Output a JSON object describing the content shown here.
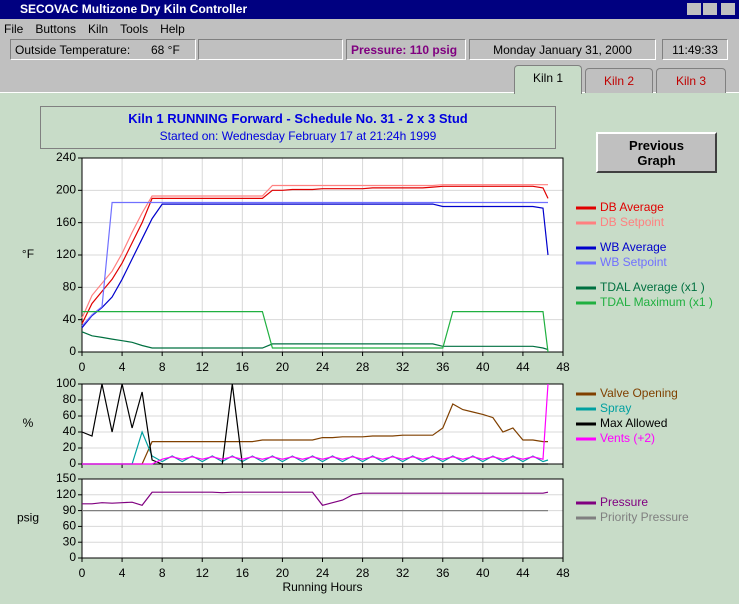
{
  "window": {
    "title": "SECOVAC Multizone Dry Kiln Controller",
    "menu": [
      "File",
      "Buttons",
      "Kiln",
      "Tools",
      "Help"
    ],
    "status": {
      "outside_label": "Outside Temperature:",
      "outside_value": "68 °F",
      "pressure": "Pressure: 110 psig",
      "date": "Monday January 31, 2000",
      "time": "11:49:33"
    },
    "tabs": [
      "Kiln 1",
      "Kiln 2",
      "Kiln 3"
    ],
    "header": {
      "title": "Kiln 1 RUNNING Forward - Schedule No. 31 - 2 x 3 Stud",
      "subtitle": "Started on: Wednesday February 17 at 21:24h 1999"
    },
    "button": "Previous Graph"
  },
  "chart_data": [
    {
      "type": "line",
      "ylabel": "°F",
      "grid": true,
      "show_xtick_labels": true,
      "xlim": [
        0,
        48
      ],
      "xticks": [
        0,
        4,
        8,
        12,
        16,
        20,
        24,
        28,
        32,
        36,
        40,
        44,
        48
      ],
      "ylim": [
        0,
        240
      ],
      "yticks": [
        0,
        40,
        80,
        120,
        160,
        200,
        240
      ],
      "x": [
        0,
        1,
        2,
        3,
        4,
        5,
        6,
        7,
        8,
        9,
        10,
        11,
        12,
        13,
        14,
        15,
        16,
        17,
        18,
        19,
        20,
        21,
        22,
        23,
        24,
        25,
        26,
        27,
        28,
        29,
        30,
        31,
        32,
        33,
        34,
        35,
        36,
        37,
        38,
        39,
        40,
        41,
        42,
        43,
        44,
        45,
        46,
        46.5
      ],
      "series": [
        {
          "name": "DB Average",
          "color": "#e00000",
          "values": [
            35,
            60,
            75,
            90,
            110,
            135,
            160,
            190,
            190,
            190,
            190,
            190,
            190,
            190,
            190,
            190,
            190,
            190,
            190,
            200,
            200,
            201,
            201,
            201,
            202,
            202,
            202,
            202,
            202,
            203,
            203,
            203,
            203,
            203,
            203,
            204,
            205,
            205,
            205,
            205,
            205,
            205,
            205,
            205,
            205,
            205,
            203,
            190
          ]
        },
        {
          "name": "DB Setpoint",
          "color": "#ff8080",
          "values": [
            42,
            70,
            85,
            100,
            122,
            148,
            172,
            193,
            193,
            193,
            193,
            193,
            193,
            193,
            193,
            193,
            193,
            193,
            193,
            206,
            206,
            206,
            206,
            206,
            206,
            206,
            206,
            206,
            206,
            206,
            206,
            206,
            206,
            206,
            206,
            206,
            207,
            207,
            207,
            207,
            207,
            207,
            207,
            207,
            207,
            207,
            207,
            207
          ]
        },
        {
          "name": "WB Average",
          "color": "#0000cc",
          "values": [
            30,
            45,
            55,
            68,
            90,
            115,
            140,
            165,
            183,
            183,
            183,
            183,
            183,
            183,
            183,
            183,
            183,
            183,
            183,
            183,
            183,
            183,
            183,
            183,
            183,
            183,
            183,
            183,
            183,
            183,
            183,
            183,
            183,
            183,
            183,
            183,
            180,
            180,
            180,
            180,
            180,
            180,
            180,
            180,
            180,
            180,
            178,
            120
          ]
        },
        {
          "name": "WB Setpoint",
          "color": "#7070ff",
          "values": [
            32,
            46,
            56,
            185,
            185,
            185,
            185,
            185,
            185,
            185,
            185,
            185,
            185,
            185,
            185,
            185,
            185,
            185,
            185,
            185,
            185,
            185,
            185,
            185,
            185,
            185,
            185,
            185,
            185,
            185,
            185,
            185,
            185,
            185,
            185,
            185,
            185,
            185,
            185,
            185,
            185,
            185,
            185,
            185,
            185,
            185,
            185,
            185
          ]
        },
        {
          "name": "TDAL Average (x1 )",
          "color": "#007040",
          "values": [
            25,
            20,
            18,
            16,
            14,
            12,
            8,
            5,
            5,
            5,
            5,
            5,
            5,
            5,
            5,
            5,
            5,
            5,
            5,
            10,
            10,
            10,
            10,
            10,
            10,
            10,
            10,
            10,
            10,
            10,
            10,
            10,
            10,
            10,
            10,
            10,
            7,
            7,
            7,
            7,
            7,
            7,
            7,
            7,
            7,
            7,
            5,
            3
          ]
        },
        {
          "name": "TDAL Maximum (x1 )",
          "color": "#20b040",
          "values": [
            50,
            50,
            50,
            50,
            50,
            50,
            50,
            50,
            50,
            50,
            50,
            50,
            50,
            50,
            50,
            50,
            50,
            50,
            50,
            5,
            5,
            5,
            5,
            5,
            5,
            5,
            5,
            5,
            5,
            5,
            5,
            5,
            5,
            5,
            5,
            5,
            5,
            50,
            50,
            50,
            50,
            50,
            50,
            50,
            50,
            50,
            50,
            0
          ]
        }
      ]
    },
    {
      "type": "line",
      "ylabel": "%",
      "grid": true,
      "show_xtick_labels": false,
      "xlim": [
        0,
        48
      ],
      "xticks": [
        0,
        4,
        8,
        12,
        16,
        20,
        24,
        28,
        32,
        36,
        40,
        44,
        48
      ],
      "ylim": [
        0,
        100
      ],
      "yticks": [
        0,
        20,
        40,
        60,
        80,
        100
      ],
      "x": [
        0,
        1,
        2,
        3,
        4,
        5,
        6,
        7,
        8,
        9,
        10,
        11,
        12,
        13,
        14,
        15,
        16,
        17,
        18,
        19,
        20,
        21,
        22,
        23,
        24,
        25,
        26,
        27,
        28,
        29,
        30,
        31,
        32,
        33,
        34,
        35,
        36,
        37,
        38,
        39,
        40,
        41,
        42,
        43,
        44,
        45,
        46,
        46.5
      ],
      "series": [
        {
          "name": "Valve Opening",
          "color": "#804000",
          "values": [
            0,
            0,
            0,
            0,
            0,
            0,
            0,
            28,
            28,
            28,
            28,
            28,
            28,
            28,
            28,
            28,
            28,
            28,
            30,
            30,
            30,
            30,
            30,
            30,
            33,
            33,
            34,
            34,
            34,
            35,
            35,
            35,
            36,
            36,
            36,
            36,
            45,
            75,
            68,
            65,
            62,
            58,
            40,
            45,
            30,
            30,
            28,
            28
          ]
        },
        {
          "name": "Spray",
          "color": "#00a0a0",
          "values": [
            0,
            0,
            0,
            0,
            0,
            0,
            40,
            10,
            3,
            10,
            3,
            10,
            3,
            10,
            3,
            10,
            3,
            10,
            3,
            10,
            3,
            10,
            3,
            10,
            3,
            10,
            3,
            10,
            3,
            10,
            3,
            10,
            3,
            10,
            3,
            10,
            3,
            10,
            3,
            10,
            3,
            10,
            3,
            10,
            3,
            10,
            3,
            5
          ]
        },
        {
          "name": "Max Allowed",
          "color": "#000000",
          "values": [
            40,
            35,
            100,
            40,
            100,
            45,
            90,
            5,
            0,
            0,
            0,
            0,
            0,
            0,
            0,
            100,
            0,
            0,
            0,
            0,
            0,
            0,
            0,
            0,
            0,
            0,
            0,
            0,
            0,
            0,
            0,
            0,
            0,
            0,
            0,
            0,
            0,
            0,
            0,
            0,
            0,
            0,
            0,
            0,
            0,
            0,
            0,
            0
          ]
        },
        {
          "name": "Vents (+2)",
          "color": "#ff00ff",
          "values": [
            0,
            0,
            0,
            0,
            0,
            0,
            0,
            0,
            6,
            9,
            6,
            9,
            6,
            9,
            6,
            9,
            6,
            9,
            6,
            9,
            6,
            9,
            6,
            9,
            6,
            9,
            6,
            9,
            6,
            9,
            6,
            9,
            6,
            9,
            6,
            9,
            6,
            9,
            6,
            9,
            6,
            9,
            6,
            9,
            6,
            9,
            6,
            100
          ]
        }
      ]
    },
    {
      "type": "line",
      "ylabel": "psig",
      "xlabel": "Running Hours",
      "grid": true,
      "show_xtick_labels": true,
      "xlim": [
        0,
        48
      ],
      "xticks": [
        0,
        4,
        8,
        12,
        16,
        20,
        24,
        28,
        32,
        36,
        40,
        44,
        48
      ],
      "ylim": [
        0,
        150
      ],
      "yticks": [
        0,
        30,
        60,
        90,
        120,
        150
      ],
      "x": [
        0,
        1,
        2,
        3,
        4,
        5,
        6,
        7,
        8,
        9,
        10,
        11,
        12,
        13,
        14,
        15,
        16,
        17,
        18,
        19,
        20,
        21,
        22,
        23,
        24,
        25,
        26,
        27,
        28,
        29,
        30,
        31,
        32,
        33,
        34,
        35,
        36,
        37,
        38,
        39,
        40,
        41,
        42,
        43,
        44,
        45,
        46,
        46.5
      ],
      "series": [
        {
          "name": "Pressure",
          "color": "#800080",
          "values": [
            103,
            103,
            105,
            104,
            105,
            106,
            100,
            125,
            125,
            125,
            125,
            125,
            125,
            125,
            124,
            125,
            125,
            125,
            125,
            125,
            125,
            125,
            125,
            125,
            100,
            105,
            110,
            120,
            123,
            123,
            123,
            123,
            123,
            123,
            123,
            123,
            123,
            123,
            123,
            123,
            123,
            123,
            123,
            123,
            123,
            123,
            123,
            125
          ]
        },
        {
          "name": "Priority Pressure",
          "color": "#808080",
          "values": [
            90,
            90,
            90,
            90,
            90,
            90,
            90,
            90,
            90,
            90,
            90,
            90,
            90,
            90,
            90,
            90,
            90,
            90,
            90,
            90,
            90,
            90,
            90,
            90,
            90,
            90,
            90,
            90,
            90,
            90,
            90,
            90,
            90,
            90,
            90,
            90,
            90,
            90,
            90,
            90,
            90,
            90,
            90,
            90,
            90,
            90,
            90,
            90
          ]
        }
      ]
    }
  ]
}
